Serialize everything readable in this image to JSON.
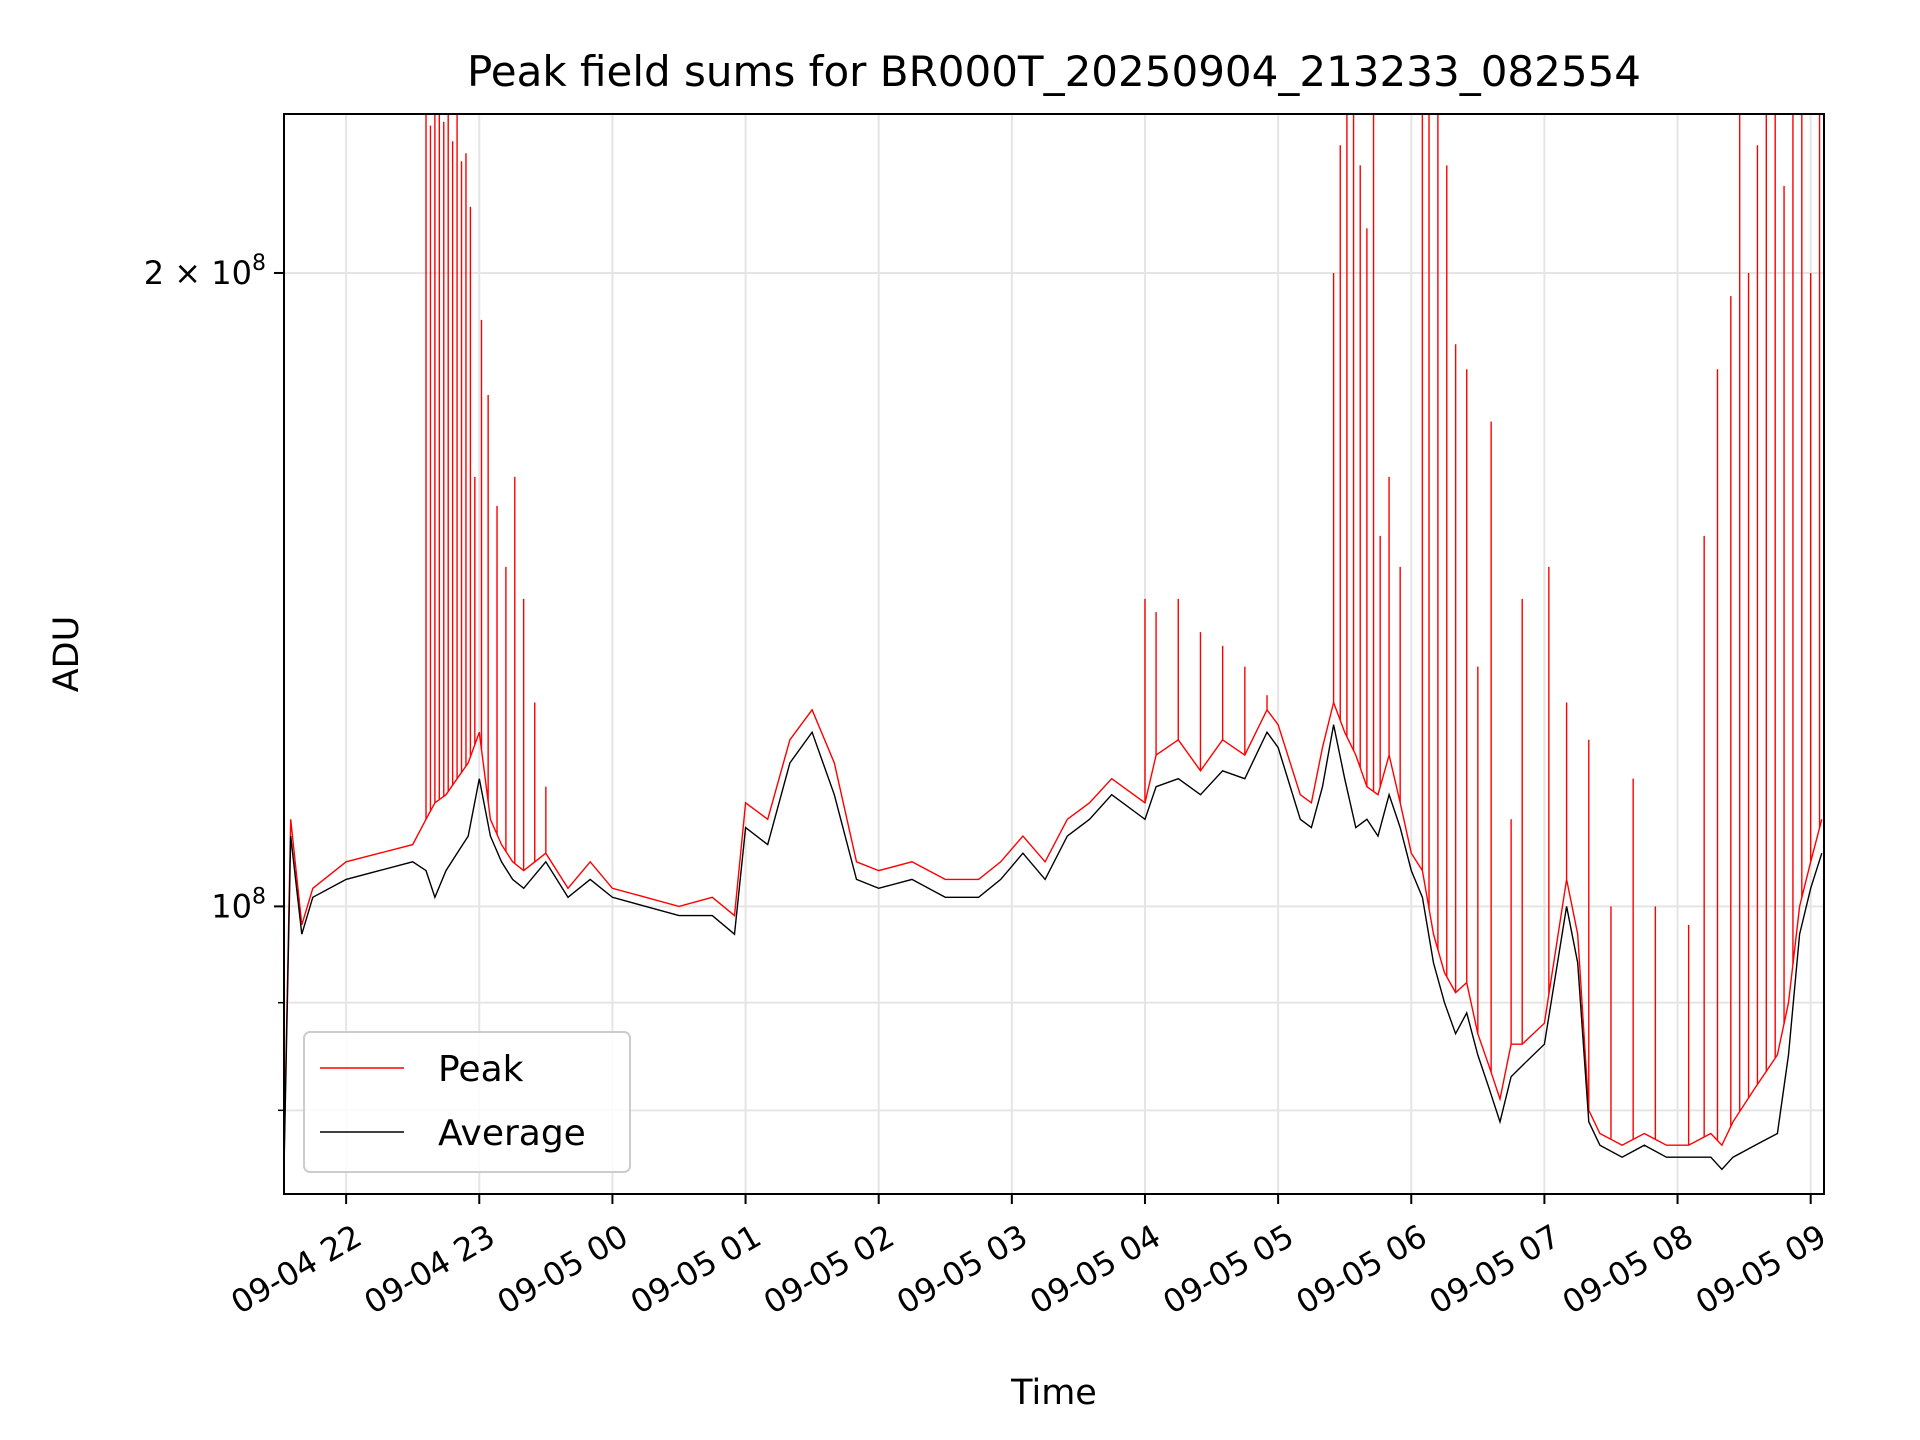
{
  "chart_data": {
    "type": "line",
    "title": "Peak field sums for BR000T_20250904_213233_082554",
    "xlabel": "Time",
    "ylabel": "ADU",
    "yscale": "log",
    "grid": true,
    "legend_position": "lower-left",
    "xlim": [
      "2025-09-04 21:32",
      "2025-09-05 09:06"
    ],
    "ylim": [
      73000000,
      238000000
    ],
    "x_ticks": [
      {
        "value": "2025-09-04 22:00",
        "label": "09-04 22"
      },
      {
        "value": "2025-09-04 23:00",
        "label": "09-04 23"
      },
      {
        "value": "2025-09-05 00:00",
        "label": "09-05 00"
      },
      {
        "value": "2025-09-05 01:00",
        "label": "09-05 01"
      },
      {
        "value": "2025-09-05 02:00",
        "label": "09-05 02"
      },
      {
        "value": "2025-09-05 03:00",
        "label": "09-05 03"
      },
      {
        "value": "2025-09-05 04:00",
        "label": "09-05 04"
      },
      {
        "value": "2025-09-05 05:00",
        "label": "09-05 05"
      },
      {
        "value": "2025-09-05 06:00",
        "label": "09-05 06"
      },
      {
        "value": "2025-09-05 07:00",
        "label": "09-05 07"
      },
      {
        "value": "2025-09-05 08:00",
        "label": "09-05 08"
      },
      {
        "value": "2025-09-05 09:00",
        "label": "09-05 09"
      }
    ],
    "y_major_ticks": [
      {
        "value": 100000000,
        "base": "10",
        "exp": "8",
        "mult": ""
      },
      {
        "value": 200000000,
        "base": "10",
        "exp": "8",
        "mult": "2 × "
      }
    ],
    "y_minor_ticks": [
      80000000,
      90000000
    ],
    "series": [
      {
        "name": "Peak",
        "color": "#ff0000",
        "x": [
          "2025-09-04 21:32",
          "2025-09-04 21:35",
          "2025-09-04 21:40",
          "2025-09-04 21:45",
          "2025-09-04 22:00",
          "2025-09-04 22:15",
          "2025-09-04 22:30",
          "2025-09-04 22:36",
          "2025-09-04 22:40",
          "2025-09-04 22:45",
          "2025-09-04 22:50",
          "2025-09-04 22:55",
          "2025-09-04 23:00",
          "2025-09-04 23:05",
          "2025-09-04 23:10",
          "2025-09-04 23:15",
          "2025-09-04 23:20",
          "2025-09-04 23:30",
          "2025-09-04 23:40",
          "2025-09-04 23:50",
          "2025-09-05 00:00",
          "2025-09-05 00:15",
          "2025-09-05 00:30",
          "2025-09-05 00:45",
          "2025-09-05 00:55",
          "2025-09-05 01:00",
          "2025-09-05 01:10",
          "2025-09-05 01:20",
          "2025-09-05 01:30",
          "2025-09-05 01:40",
          "2025-09-05 01:50",
          "2025-09-05 02:00",
          "2025-09-05 02:15",
          "2025-09-05 02:30",
          "2025-09-05 02:45",
          "2025-09-05 02:55",
          "2025-09-05 03:05",
          "2025-09-05 03:15",
          "2025-09-05 03:25",
          "2025-09-05 03:35",
          "2025-09-05 03:45",
          "2025-09-05 04:00",
          "2025-09-05 04:05",
          "2025-09-05 04:15",
          "2025-09-05 04:25",
          "2025-09-05 04:35",
          "2025-09-05 04:45",
          "2025-09-05 04:55",
          "2025-09-05 05:00",
          "2025-09-05 05:10",
          "2025-09-05 05:15",
          "2025-09-05 05:20",
          "2025-09-05 05:25",
          "2025-09-05 05:30",
          "2025-09-05 05:35",
          "2025-09-05 05:40",
          "2025-09-05 05:45",
          "2025-09-05 05:50",
          "2025-09-05 05:55",
          "2025-09-05 06:00",
          "2025-09-05 06:05",
          "2025-09-05 06:10",
          "2025-09-05 06:15",
          "2025-09-05 06:20",
          "2025-09-05 06:25",
          "2025-09-05 06:30",
          "2025-09-05 06:35",
          "2025-09-05 06:40",
          "2025-09-05 06:45",
          "2025-09-05 06:50",
          "2025-09-05 07:00",
          "2025-09-05 07:10",
          "2025-09-05 07:15",
          "2025-09-05 07:20",
          "2025-09-05 07:25",
          "2025-09-05 07:35",
          "2025-09-05 07:45",
          "2025-09-05 07:55",
          "2025-09-05 08:05",
          "2025-09-05 08:15",
          "2025-09-05 08:20",
          "2025-09-05 08:25",
          "2025-09-05 08:35",
          "2025-09-05 08:45",
          "2025-09-05 08:50",
          "2025-09-05 08:55",
          "2025-09-05 09:00",
          "2025-09-05 09:05"
        ],
        "values": [
          76000000,
          110000000,
          98000000,
          102000000,
          105000000,
          106000000,
          107000000,
          110000000,
          112000000,
          113000000,
          115000000,
          117000000,
          121000000,
          110000000,
          107000000,
          105000000,
          104000000,
          106000000,
          102000000,
          105000000,
          102000000,
          101000000,
          100000000,
          101000000,
          99000000,
          112000000,
          110000000,
          120000000,
          124000000,
          117000000,
          105000000,
          104000000,
          105000000,
          103000000,
          103000000,
          105000000,
          108000000,
          105000000,
          110000000,
          112000000,
          115000000,
          112000000,
          118000000,
          120000000,
          116000000,
          120000000,
          118000000,
          124000000,
          122000000,
          113000000,
          112000000,
          119000000,
          125000000,
          121000000,
          118000000,
          114000000,
          113000000,
          118000000,
          112000000,
          106000000,
          104000000,
          97000000,
          93000000,
          91000000,
          92000000,
          87000000,
          84000000,
          81000000,
          86000000,
          86000000,
          88000000,
          103000000,
          97000000,
          80000000,
          78000000,
          77000000,
          78000000,
          77000000,
          77000000,
          78000000,
          77000000,
          79000000,
          82000000,
          85000000,
          90000000,
          100000000,
          105000000,
          110000000
        ]
      },
      {
        "name": "Average",
        "color": "#000000",
        "x": [
          "2025-09-04 21:32",
          "2025-09-04 21:35",
          "2025-09-04 21:40",
          "2025-09-04 21:45",
          "2025-09-04 22:00",
          "2025-09-04 22:15",
          "2025-09-04 22:30",
          "2025-09-04 22:36",
          "2025-09-04 22:40",
          "2025-09-04 22:45",
          "2025-09-04 22:50",
          "2025-09-04 22:55",
          "2025-09-04 23:00",
          "2025-09-04 23:05",
          "2025-09-04 23:10",
          "2025-09-04 23:15",
          "2025-09-04 23:20",
          "2025-09-04 23:30",
          "2025-09-04 23:40",
          "2025-09-04 23:50",
          "2025-09-05 00:00",
          "2025-09-05 00:15",
          "2025-09-05 00:30",
          "2025-09-05 00:45",
          "2025-09-05 00:55",
          "2025-09-05 01:00",
          "2025-09-05 01:10",
          "2025-09-05 01:20",
          "2025-09-05 01:30",
          "2025-09-05 01:40",
          "2025-09-05 01:50",
          "2025-09-05 02:00",
          "2025-09-05 02:15",
          "2025-09-05 02:30",
          "2025-09-05 02:45",
          "2025-09-05 02:55",
          "2025-09-05 03:05",
          "2025-09-05 03:15",
          "2025-09-05 03:25",
          "2025-09-05 03:35",
          "2025-09-05 03:45",
          "2025-09-05 04:00",
          "2025-09-05 04:05",
          "2025-09-05 04:15",
          "2025-09-05 04:25",
          "2025-09-05 04:35",
          "2025-09-05 04:45",
          "2025-09-05 04:55",
          "2025-09-05 05:00",
          "2025-09-05 05:10",
          "2025-09-05 05:15",
          "2025-09-05 05:20",
          "2025-09-05 05:25",
          "2025-09-05 05:30",
          "2025-09-05 05:35",
          "2025-09-05 05:40",
          "2025-09-05 05:45",
          "2025-09-05 05:50",
          "2025-09-05 05:55",
          "2025-09-05 06:00",
          "2025-09-05 06:05",
          "2025-09-05 06:10",
          "2025-09-05 06:15",
          "2025-09-05 06:20",
          "2025-09-05 06:25",
          "2025-09-05 06:30",
          "2025-09-05 06:35",
          "2025-09-05 06:40",
          "2025-09-05 06:45",
          "2025-09-05 06:50",
          "2025-09-05 07:00",
          "2025-09-05 07:10",
          "2025-09-05 07:15",
          "2025-09-05 07:20",
          "2025-09-05 07:25",
          "2025-09-05 07:35",
          "2025-09-05 07:45",
          "2025-09-05 07:55",
          "2025-09-05 08:05",
          "2025-09-05 08:15",
          "2025-09-05 08:20",
          "2025-09-05 08:25",
          "2025-09-05 08:35",
          "2025-09-05 08:45",
          "2025-09-05 08:50",
          "2025-09-05 08:55",
          "2025-09-05 09:00",
          "2025-09-05 09:05"
        ],
        "values": [
          75000000,
          108000000,
          97000000,
          101000000,
          103000000,
          104000000,
          105000000,
          104000000,
          101000000,
          104000000,
          106000000,
          108000000,
          115000000,
          108000000,
          105000000,
          103000000,
          102000000,
          105000000,
          101000000,
          103000000,
          101000000,
          100000000,
          99000000,
          99000000,
          97000000,
          109000000,
          107000000,
          117000000,
          121000000,
          113000000,
          103000000,
          102000000,
          103000000,
          101000000,
          101000000,
          103000000,
          106000000,
          103000000,
          108000000,
          110000000,
          113000000,
          110000000,
          114000000,
          115000000,
          113000000,
          116000000,
          115000000,
          121000000,
          119000000,
          110000000,
          109000000,
          114000000,
          122000000,
          115000000,
          109000000,
          110000000,
          108000000,
          113000000,
          109000000,
          104000000,
          101000000,
          94000000,
          90000000,
          87000000,
          89000000,
          85000000,
          82000000,
          79000000,
          83000000,
          84000000,
          86000000,
          100000000,
          94000000,
          79000000,
          77000000,
          76000000,
          77000000,
          76000000,
          76000000,
          76000000,
          75000000,
          76000000,
          77000000,
          78000000,
          85000000,
          97000000,
          102000000,
          106000000
        ]
      }
    ],
    "peak_spikes": {
      "x": [
        "2025-09-04 22:36",
        "2025-09-04 22:38",
        "2025-09-04 22:40",
        "2025-09-04 22:42",
        "2025-09-04 22:44",
        "2025-09-04 22:46",
        "2025-09-04 22:48",
        "2025-09-04 22:50",
        "2025-09-04 22:52",
        "2025-09-04 22:54",
        "2025-09-04 22:56",
        "2025-09-04 22:58",
        "2025-09-04 23:01",
        "2025-09-04 23:04",
        "2025-09-04 23:08",
        "2025-09-04 23:12",
        "2025-09-04 23:16",
        "2025-09-04 23:20",
        "2025-09-04 23:25",
        "2025-09-04 23:30",
        "2025-09-05 04:00",
        "2025-09-05 04:05",
        "2025-09-05 04:15",
        "2025-09-05 04:25",
        "2025-09-05 04:35",
        "2025-09-05 04:45",
        "2025-09-05 04:55",
        "2025-09-05 05:25",
        "2025-09-05 05:28",
        "2025-09-05 05:31",
        "2025-09-05 05:34",
        "2025-09-05 05:37",
        "2025-09-05 05:40",
        "2025-09-05 05:43",
        "2025-09-05 05:46",
        "2025-09-05 05:50",
        "2025-09-05 05:55",
        "2025-09-05 06:05",
        "2025-09-05 06:08",
        "2025-09-05 06:12",
        "2025-09-05 06:16",
        "2025-09-05 06:20",
        "2025-09-05 06:25",
        "2025-09-05 06:30",
        "2025-09-05 06:36",
        "2025-09-05 06:45",
        "2025-09-05 06:50",
        "2025-09-05 07:02",
        "2025-09-05 07:10",
        "2025-09-05 07:20",
        "2025-09-05 07:30",
        "2025-09-05 07:40",
        "2025-09-05 07:50",
        "2025-09-05 08:05",
        "2025-09-05 08:12",
        "2025-09-05 08:18",
        "2025-09-05 08:24",
        "2025-09-05 08:28",
        "2025-09-05 08:32",
        "2025-09-05 08:36",
        "2025-09-05 08:40",
        "2025-09-05 08:44",
        "2025-09-05 08:48",
        "2025-09-05 08:52",
        "2025-09-05 08:56",
        "2025-09-05 09:00",
        "2025-09-05 09:04"
      ],
      "values": [
        238000000,
        235000000,
        238000000,
        238000000,
        236000000,
        238000000,
        231000000,
        238000000,
        226000000,
        228000000,
        215000000,
        160000000,
        190000000,
        175000000,
        155000000,
        145000000,
        160000000,
        140000000,
        125000000,
        114000000,
        140000000,
        138000000,
        140000000,
        135000000,
        133000000,
        130000000,
        126000000,
        200000000,
        230000000,
        238000000,
        238000000,
        225000000,
        210000000,
        238000000,
        150000000,
        160000000,
        145000000,
        238000000,
        238000000,
        238000000,
        225000000,
        185000000,
        180000000,
        130000000,
        170000000,
        110000000,
        140000000,
        145000000,
        125000000,
        120000000,
        100000000,
        115000000,
        100000000,
        98000000,
        150000000,
        180000000,
        195000000,
        238000000,
        200000000,
        230000000,
        238000000,
        238000000,
        220000000,
        238000000,
        238000000,
        200000000,
        238000000
      ]
    }
  }
}
